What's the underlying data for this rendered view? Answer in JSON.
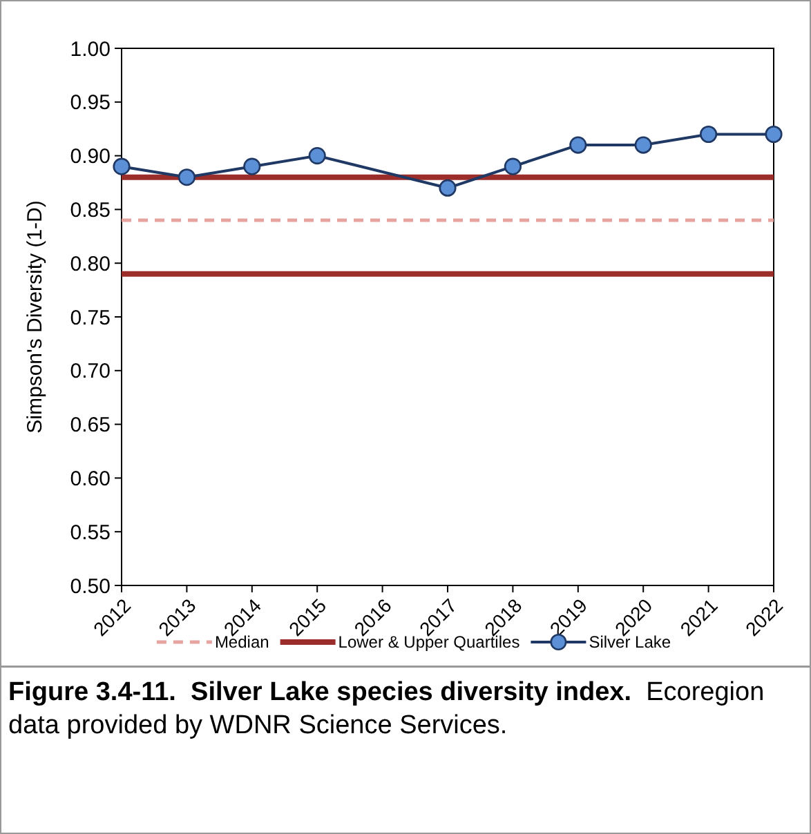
{
  "chart_data": {
    "type": "line",
    "title": "Figure 3.4-11.  Silver Lake species diversity index.",
    "annotations": [
      "Ecoregion data provided by WDNR Science Services."
    ],
    "ylabel": "Simpson's Diversity (1-D)",
    "xlim": [
      2012,
      2022
    ],
    "xticks": [
      2012,
      2013,
      2014,
      2015,
      2016,
      2017,
      2018,
      2019,
      2020,
      2021,
      2022
    ],
    "ylim": [
      0.5,
      1.0
    ],
    "yticks": [
      {
        "value": 0.5,
        "label": "0.50"
      },
      {
        "value": 0.55,
        "label": "0.55"
      },
      {
        "value": 0.6,
        "label": "0.60"
      },
      {
        "value": 0.65,
        "label": "0.65"
      },
      {
        "value": 0.7,
        "label": "0.70"
      },
      {
        "value": 0.75,
        "label": "0.75"
      },
      {
        "value": 0.8,
        "label": "0.80"
      },
      {
        "value": 0.85,
        "label": "0.85"
      },
      {
        "value": 0.9,
        "label": "0.90"
      },
      {
        "value": 0.95,
        "label": "0.95"
      },
      {
        "value": 1.0,
        "label": "1.00"
      }
    ],
    "series": [
      {
        "name": "Silver Lake",
        "color": "#1f3864",
        "x": [
          2012,
          2013,
          2014,
          2015,
          2017,
          2018,
          2019,
          2020,
          2021,
          2022
        ],
        "values": [
          0.89,
          0.88,
          0.89,
          0.9,
          0.87,
          0.89,
          0.91,
          0.91,
          0.92,
          0.92
        ]
      }
    ],
    "marker": "circle",
    "ref_lines": [
      {
        "axis": "y",
        "value": 0.84,
        "label": "Median",
        "color": "#e6a3a0",
        "line_style": "dashed"
      },
      {
        "axis": "y",
        "value": 0.79,
        "label": "Lower & Upper Quartiles",
        "color": "#9b2d2b"
      },
      {
        "axis": "y",
        "value": 0.88,
        "color": "#9b2d2b"
      }
    ],
    "legend": "bottom",
    "grid": false
  }
}
